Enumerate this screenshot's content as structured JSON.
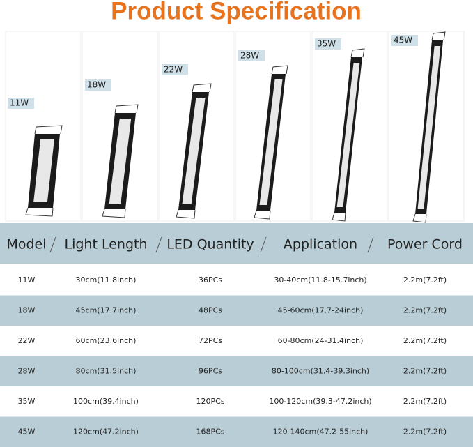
{
  "header": {
    "title": "Product Specification"
  },
  "products": [
    "11W",
    "18W",
    "22W",
    "28W",
    "35W",
    "45W"
  ],
  "table": {
    "columns": [
      "Model",
      "Light Length",
      "LED Quantity",
      "Application",
      "Power Cord"
    ],
    "rows": [
      [
        "11W",
        "30cm(11.8inch)",
        "36PCs",
        "30-40cm(11.8-15.7inch)",
        "2.2m(7.2ft)"
      ],
      [
        "18W",
        "45cm(17.7inch)",
        "48PCs",
        "45-60cm(17.7-24inch)",
        "2.2m(7.2ft)"
      ],
      [
        "22W",
        "60cm(23.6inch)",
        "72PCs",
        "60-80cm(24-31.4inch)",
        "2.2m(7.2ft)"
      ],
      [
        "28W",
        "80cm(31.5inch)",
        "96PCs",
        "80-100cm(31.4-39.3inch)",
        "2.2m(7.2ft)"
      ],
      [
        "35W",
        "100cm(39.4inch)",
        "120PCs",
        "100-120cm(39.3-47.2inch)",
        "2.2m(7.2ft)"
      ],
      [
        "45W",
        "120cm(47.2inch)",
        "168PCs",
        "120-140cm(47.2-55inch)",
        "2.2m(7.2ft)"
      ]
    ]
  }
}
